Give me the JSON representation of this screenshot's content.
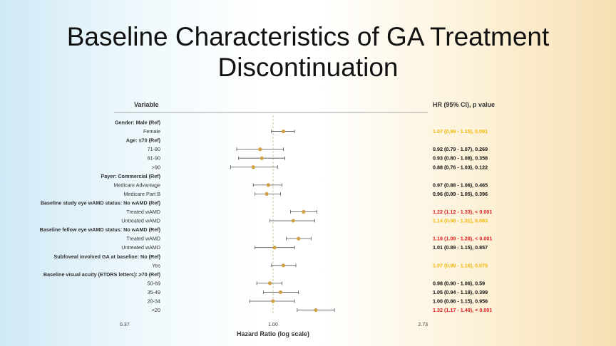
{
  "slide": {
    "title_line1": "Baseline Characteristics of GA Treatment",
    "title_line2": "Discontinuation"
  },
  "table": {
    "variable_header": "Variable",
    "result_header": "HR (95% CI), p value"
  },
  "colors": {
    "not_significant": "#111111",
    "trend": "#f2b705",
    "significant": "#e02020",
    "marker": "#d4a045",
    "whisker": "#555555",
    "reference_line": "#c8c8a8"
  },
  "chart_data": {
    "type": "forest",
    "xlabel": "Hazard Ratio (log scale)",
    "xscale": "log",
    "xlim": [
      0.37,
      2.73
    ],
    "xticks": [
      "0.37",
      "1.00",
      "2.73"
    ],
    "reference_line": 1.0,
    "rows": [
      {
        "label": "Gender: Male (Ref)",
        "header": true
      },
      {
        "label": "Female",
        "hr": 1.07,
        "lo": 0.99,
        "hi": 1.15,
        "text": "1.07 (0.99 - 1.15), 0.091",
        "status": "trend"
      },
      {
        "label": "Age: ≤70 (Ref)",
        "header": true
      },
      {
        "label": "71-80",
        "hr": 0.92,
        "lo": 0.79,
        "hi": 1.07,
        "text": "0.92 (0.79 - 1.07), 0.269",
        "status": "ns"
      },
      {
        "label": "81-90",
        "hr": 0.93,
        "lo": 0.8,
        "hi": 1.08,
        "text": "0.93 (0.80 - 1.08), 0.358",
        "status": "ns"
      },
      {
        "label": ">90",
        "hr": 0.88,
        "lo": 0.76,
        "hi": 1.03,
        "text": "0.88 (0.76 - 1.03), 0.122",
        "status": "ns"
      },
      {
        "label": "Payer: Commercial (Ref)",
        "header": true
      },
      {
        "label": "Medicare Advantage",
        "hr": 0.97,
        "lo": 0.88,
        "hi": 1.06,
        "text": "0.97 (0.88 - 1.06), 0.465",
        "status": "ns"
      },
      {
        "label": "Medicare Part B",
        "hr": 0.96,
        "lo": 0.89,
        "hi": 1.05,
        "text": "0.96 (0.89 - 1.05), 0.396",
        "status": "ns"
      },
      {
        "label": "Baseline study eye wAMD status: No wAMD (Ref)",
        "header": true
      },
      {
        "label": "Treated wAMD",
        "hr": 1.22,
        "lo": 1.12,
        "hi": 1.33,
        "text": "1.22 (1.12 - 1.33), < 0.001",
        "status": "sig"
      },
      {
        "label": "Untreated wAMD",
        "hr": 1.14,
        "lo": 0.98,
        "hi": 1.31,
        "text": "1.14 (0.98 - 1.31), 0.083",
        "status": "trend"
      },
      {
        "label": "Baseline fellow eye wAMD status: No wAMD (Ref)",
        "header": true
      },
      {
        "label": "Treated wAMD",
        "hr": 1.18,
        "lo": 1.09,
        "hi": 1.28,
        "text": "1.18 (1.09 - 1.28), < 0.001",
        "status": "sig"
      },
      {
        "label": "Untreated wAMD",
        "hr": 1.01,
        "lo": 0.89,
        "hi": 1.15,
        "text": "1.01 (0.89 - 1.15), 0.857",
        "status": "ns"
      },
      {
        "label": "Subfoveal involved GA at baseline: No (Ref)",
        "header": true
      },
      {
        "label": "Yes",
        "hr": 1.07,
        "lo": 0.99,
        "hi": 1.16,
        "text": "1.07 (0.99 - 1.16), 0.075",
        "status": "trend"
      },
      {
        "label": "Baseline visual acuity (ETDRS letters): ≥70 (Ref)",
        "header": true
      },
      {
        "label": "50-69",
        "hr": 0.98,
        "lo": 0.9,
        "hi": 1.06,
        "text": "0.98 (0.90 - 1.06), 0.59",
        "status": "ns"
      },
      {
        "label": "35-49",
        "hr": 1.05,
        "lo": 0.94,
        "hi": 1.18,
        "text": "1.05 (0.94 - 1.18), 0.399",
        "status": "ns"
      },
      {
        "label": "20-34",
        "hr": 1.0,
        "lo": 0.86,
        "hi": 1.15,
        "text": "1.00 (0.86 - 1.15), 0.956",
        "status": "ns"
      },
      {
        "label": "<20",
        "hr": 1.32,
        "lo": 1.17,
        "hi": 1.49,
        "text": "1.32 (1.17 - 1.49), < 0.001",
        "status": "sig"
      }
    ]
  }
}
